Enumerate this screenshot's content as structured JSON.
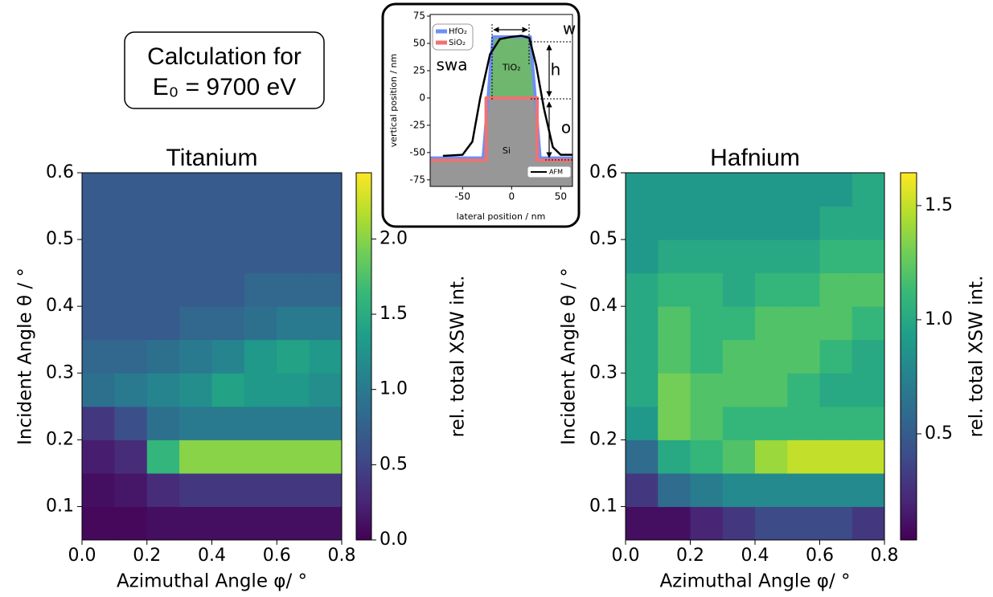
{
  "textbox": {
    "lines": [
      "Calculation for",
      "E₀ = 9700 eV"
    ]
  },
  "chart_data": [
    {
      "type": "heatmap",
      "title": "Titanium",
      "xlabel": "Azimuthal Angle φ/ °",
      "ylabel": "Incident Angle θ / °",
      "colorbar_label": "rel. total XSW int.",
      "colormap": "viridis",
      "xlim": [
        0,
        0.8
      ],
      "ylim": [
        0.05,
        0.6
      ],
      "clim": [
        0,
        2.44
      ],
      "xticks": [
        {
          "value": 0,
          "label": "0.0"
        },
        0.2,
        0.4,
        0.6,
        0.8
      ],
      "yticks": [
        0.1,
        0.2,
        0.3,
        0.4,
        0.5,
        0.6
      ],
      "cticks": [
        {
          "value": 0,
          "label": "0.0"
        },
        0.5,
        {
          "value": 1,
          "label": "1.0"
        },
        1.5,
        {
          "value": 2,
          "label": "2.0"
        }
      ],
      "xbins": [
        0,
        0.1,
        0.2,
        0.3,
        0.4,
        0.5,
        0.6,
        0.7,
        0.8
      ],
      "ybins": [
        0.05,
        0.1,
        0.15,
        0.2,
        0.25,
        0.3,
        0.35,
        0.4,
        0.45,
        0.5,
        0.55,
        0.6
      ],
      "z": [
        [
          0.05,
          0.05,
          0.1,
          0.1,
          0.1,
          0.1,
          0.1,
          0.1
        ],
        [
          0.1,
          0.15,
          0.3,
          0.4,
          0.4,
          0.4,
          0.4,
          0.4
        ],
        [
          0.2,
          0.3,
          1.6,
          2.0,
          2.0,
          2.0,
          2.0,
          2.0
        ],
        [
          0.4,
          0.6,
          0.9,
          1.0,
          1.0,
          1.0,
          1.0,
          1.0
        ],
        [
          0.9,
          1.0,
          1.1,
          1.2,
          1.4,
          1.3,
          1.3,
          1.2
        ],
        [
          0.8,
          0.8,
          0.9,
          1.0,
          1.1,
          1.3,
          1.4,
          1.3
        ],
        [
          0.7,
          0.7,
          0.7,
          0.8,
          0.8,
          0.9,
          1.0,
          1.0
        ],
        [
          0.7,
          0.7,
          0.7,
          0.7,
          0.7,
          0.8,
          0.8,
          0.8
        ],
        [
          0.7,
          0.7,
          0.7,
          0.7,
          0.7,
          0.7,
          0.7,
          0.7
        ],
        [
          0.7,
          0.7,
          0.7,
          0.7,
          0.7,
          0.7,
          0.7,
          0.7
        ],
        [
          0.7,
          0.7,
          0.7,
          0.7,
          0.7,
          0.7,
          0.7,
          0.7
        ]
      ]
    },
    {
      "type": "heatmap",
      "title": "Hafnium",
      "xlabel": "Azimuthal Angle φ/ °",
      "ylabel": "Incident Angle θ / °",
      "colorbar_label": "rel. total XSW int.",
      "colormap": "viridis",
      "xlim": [
        0,
        0.8
      ],
      "ylim": [
        0.05,
        0.6
      ],
      "clim": [
        0.035,
        1.644
      ],
      "xticks": [
        {
          "value": 0,
          "label": "0.0"
        },
        0.2,
        0.4,
        0.6,
        0.8
      ],
      "yticks": [
        0.1,
        0.2,
        0.3,
        0.4,
        0.5,
        0.6
      ],
      "cticks": [
        0.5,
        {
          "value": 1,
          "label": "1.0"
        },
        1.5
      ],
      "xbins": [
        0,
        0.1,
        0.2,
        0.3,
        0.4,
        0.5,
        0.6,
        0.7,
        0.8
      ],
      "ybins": [
        0.05,
        0.1,
        0.15,
        0.2,
        0.25,
        0.3,
        0.35,
        0.4,
        0.45,
        0.5,
        0.55,
        0.6
      ],
      "z": [
        [
          0.1,
          0.1,
          0.2,
          0.3,
          0.4,
          0.4,
          0.4,
          0.3
        ],
        [
          0.3,
          0.6,
          0.7,
          0.8,
          0.8,
          0.8,
          0.8,
          0.8
        ],
        [
          0.6,
          1.0,
          1.1,
          1.2,
          1.4,
          1.5,
          1.5,
          1.5
        ],
        [
          0.9,
          1.3,
          1.2,
          1.1,
          1.1,
          1.1,
          1.1,
          1.1
        ],
        [
          1.0,
          1.3,
          1.2,
          1.2,
          1.2,
          1.1,
          1.0,
          1.0
        ],
        [
          1.0,
          1.2,
          1.1,
          1.2,
          1.2,
          1.2,
          1.1,
          1.0
        ],
        [
          1.0,
          1.2,
          1.1,
          1.1,
          1.2,
          1.2,
          1.2,
          1.1
        ],
        [
          1.0,
          1.1,
          1.1,
          1.0,
          1.1,
          1.1,
          1.2,
          1.2
        ],
        [
          0.9,
          1.0,
          1.0,
          1.0,
          1.0,
          1.0,
          1.1,
          1.1
        ],
        [
          0.9,
          0.9,
          0.9,
          0.9,
          0.9,
          0.9,
          1.0,
          1.0
        ],
        [
          0.9,
          0.9,
          0.9,
          0.9,
          0.9,
          0.9,
          0.9,
          1.0
        ]
      ]
    },
    {
      "type": "line",
      "xlabel": "lateral position / nm",
      "ylabel": "vertical position / nm",
      "xlim": [
        -83,
        62
      ],
      "ylim": [
        -81,
        76.5
      ],
      "xticks": [
        -50,
        0,
        50
      ],
      "yticks": [
        -75,
        -50,
        -25,
        0,
        25,
        50,
        75
      ],
      "regions": [
        {
          "name": "Si",
          "color": "#8c8c8c",
          "x": [
            -83,
            -25,
            -25,
            25,
            25,
            62,
            62,
            -83
          ],
          "y": [
            -57,
            -57,
            0,
            0,
            -57,
            -57,
            -81,
            -81
          ]
        },
        {
          "name": "TiO₂",
          "color": "#5fae5f",
          "x": [
            -25,
            -18,
            18,
            25
          ],
          "y": [
            0,
            55,
            55,
            0
          ]
        }
      ],
      "series": [
        {
          "name": "HfO₂",
          "color": "#6e8ff5",
          "x": [
            -83,
            -29,
            -19,
            19,
            29,
            62
          ],
          "y": [
            -55,
            -55,
            56,
            56,
            -55,
            -55
          ]
        },
        {
          "name": "SiO₂",
          "color": "#f07272",
          "x": [
            -83,
            -26,
            -26,
            26,
            26,
            62
          ],
          "y": [
            -57,
            -57,
            0,
            0,
            -57,
            -57
          ]
        },
        {
          "name": "AFM",
          "color": "#000000",
          "x": [
            -70,
            -50,
            -40,
            -32,
            -22,
            -12,
            0,
            10,
            18,
            25,
            33,
            42,
            50,
            62
          ],
          "y": [
            -53,
            -52,
            -40,
            0,
            40,
            54,
            56,
            57,
            55,
            30,
            -10,
            -45,
            -52,
            -52
          ]
        }
      ],
      "annotations": [
        "w",
        "h",
        "o",
        "swa"
      ]
    }
  ]
}
